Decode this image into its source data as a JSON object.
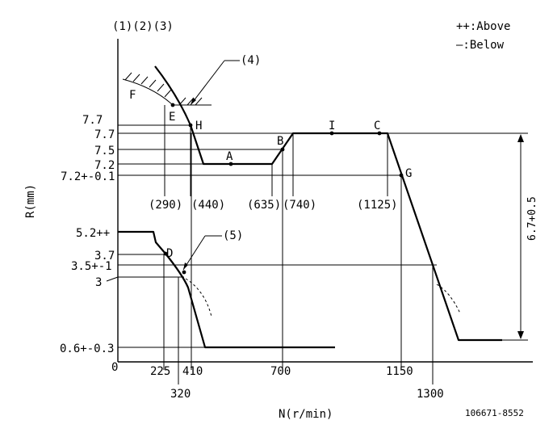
{
  "header": {
    "top_left": "(1)(2)(3)",
    "legend_above": "++:Above",
    "legend_below": "—:Below"
  },
  "axes": {
    "y_label": "R(mm)",
    "x_label": "N(r/min)",
    "origin": "0"
  },
  "y_ticks": [
    "7.7",
    "7.7",
    "7.5",
    "7.2",
    "7.2+-0.1",
    "5.2++",
    "3.7",
    "3.5+-1",
    "3",
    "0.6+-0.3"
  ],
  "x_ticks": [
    "225",
    "410",
    "700",
    "1150",
    "320",
    "1300"
  ],
  "x_paren_labels": [
    "(290)",
    "(440)",
    "(635)",
    "(740)",
    "(1125)"
  ],
  "points": {
    "A": "A",
    "B": "B",
    "C": "C",
    "D": "D",
    "E": "E",
    "F": "F",
    "G": "G",
    "H": "H",
    "I": "I"
  },
  "callouts": {
    "c4": "(4)",
    "c5": "(5)"
  },
  "span_label": "6.7+0.5",
  "reference": "106671-8552",
  "curve": {
    "description": "governor characteristic",
    "upper": [
      {
        "n": 290,
        "r": 7.7
      },
      {
        "n": 440,
        "r": 7.2
      },
      {
        "n": 635,
        "r": 7.2
      },
      {
        "n": 740,
        "r": 7.7
      },
      {
        "n": 1125,
        "r": 7.7
      },
      {
        "n": 1300,
        "r": 3.5
      }
    ],
    "lower": [
      {
        "n": 225,
        "r": 5.2
      },
      {
        "n": 320,
        "r": 3.5
      },
      {
        "n": 410,
        "r": 0.6
      },
      {
        "n": 700,
        "r": 0.6
      }
    ]
  }
}
